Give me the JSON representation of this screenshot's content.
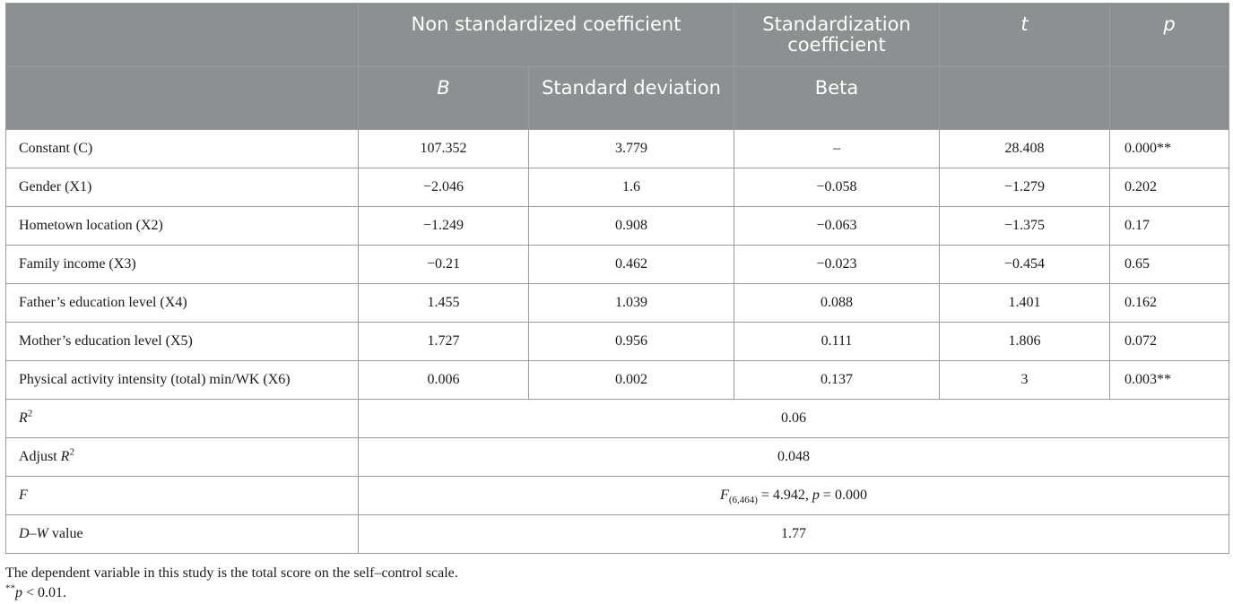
{
  "header": {
    "row1": {
      "c1": "Non standardized coefficient",
      "c2": "Standardization coefficient",
      "c3": "t",
      "c4": "p"
    },
    "row2": {
      "c1": "B",
      "c2": "Standard deviation",
      "c3": "Beta"
    }
  },
  "rows": [
    {
      "label": "Constant (C)",
      "b": "107.352",
      "sd": "3.779",
      "beta": "–",
      "t": "28.408",
      "p": "0.000**"
    },
    {
      "label": "Gender (X1)",
      "b": "−2.046",
      "sd": "1.6",
      "beta": "−0.058",
      "t": "−1.279",
      "p": "0.202"
    },
    {
      "label": "Hometown location (X2)",
      "b": "−1.249",
      "sd": "0.908",
      "beta": "−0.063",
      "t": "−1.375",
      "p": "0.17"
    },
    {
      "label": "Family income (X3)",
      "b": "−0.21",
      "sd": "0.462",
      "beta": "−0.023",
      "t": "−0.454",
      "p": "0.65"
    },
    {
      "label": "Father’s education level (X4)",
      "b": "1.455",
      "sd": "1.039",
      "beta": "0.088",
      "t": "1.401",
      "p": "0.162"
    },
    {
      "label": "Mother’s education level (X5)",
      "b": "1.727",
      "sd": "0.956",
      "beta": "0.111",
      "t": "1.806",
      "p": "0.072"
    },
    {
      "label": "Physical activity intensity (total) min/WK (X6)",
      "b": "0.006",
      "sd": "0.002",
      "beta": "0.137",
      "t": "3",
      "p": "0.003**"
    }
  ],
  "summary": {
    "r2": {
      "label_base": "R",
      "label_sup": "2",
      "value": "0.06"
    },
    "adj_r2": {
      "label_prefix": "Adjust ",
      "label_base": "R",
      "label_sup": "2",
      "value": "0.048"
    },
    "f": {
      "label": "F",
      "stat_base": "F",
      "stat_sub": "(6,464)",
      "stat_rest": " = 4.942, ",
      "p_label": "p",
      "p_rest": " = 0.000"
    },
    "dw": {
      "label_ital": "D–W",
      "label_rest": " value",
      "value": "1.77"
    }
  },
  "notes": {
    "note1": "The dependent variable in this study is the total score on the self–control scale.",
    "note2_sup": "**",
    "note2_ital": "p",
    "note2_rest": " < 0.01."
  }
}
